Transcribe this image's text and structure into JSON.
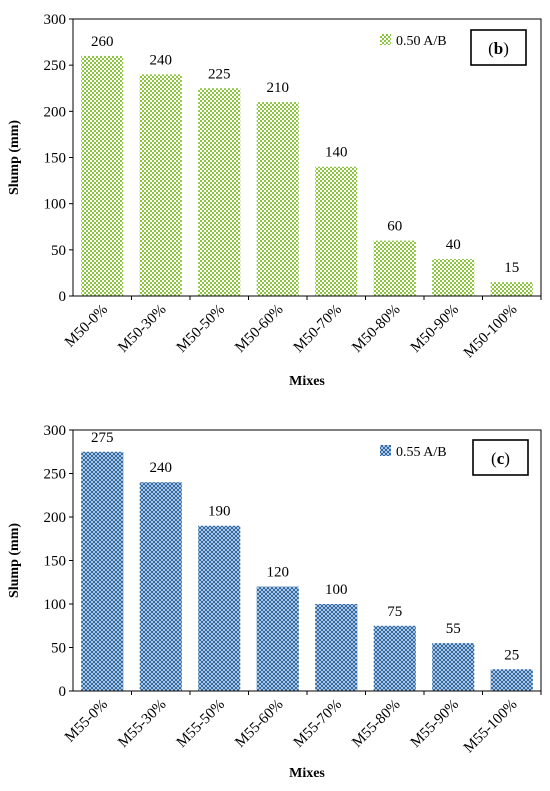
{
  "chart_data": [
    {
      "type": "bar",
      "panel_label": "b",
      "categories": [
        "M50-0%",
        "M50-30%",
        "M50-50%",
        "M50-60%",
        "M50-70%",
        "M50-80%",
        "M50-90%",
        "M50-100%"
      ],
      "series": [
        {
          "name": "0.50 A/B",
          "values": [
            260,
            240,
            225,
            210,
            140,
            60,
            40,
            15
          ],
          "color": "#8cc63f"
        }
      ],
      "data_labels": [
        "260",
        "240",
        "225",
        "210",
        "140",
        "60",
        "40",
        "15"
      ],
      "xlabel": "Mixes",
      "ylabel": "Slump (mm)",
      "ylim": [
        0,
        300
      ],
      "yticks": [
        "0",
        "50",
        "100",
        "150",
        "200",
        "250",
        "300"
      ],
      "legend_position": "top-right",
      "pattern": "checkered"
    },
    {
      "type": "bar",
      "panel_label": "c",
      "categories": [
        "M55-0%",
        "M55-30%",
        "M55-50%",
        "M55-60%",
        "M55-70%",
        "M55-80%",
        "M55-90%",
        "M55-100%"
      ],
      "series": [
        {
          "name": "0.55 A/B",
          "values": [
            275,
            240,
            190,
            120,
            100,
            75,
            55,
            25
          ],
          "color": "#2f6aa8"
        }
      ],
      "data_labels": [
        "275",
        "240",
        "190",
        "120",
        "100",
        "75",
        "55",
        "25"
      ],
      "xlabel": "Mixes",
      "ylabel": "Slump (mm)",
      "ylim": [
        0,
        300
      ],
      "yticks": [
        "0",
        "50",
        "100",
        "150",
        "200",
        "250",
        "300"
      ],
      "legend_position": "top-right",
      "pattern": "crosshatch"
    }
  ]
}
